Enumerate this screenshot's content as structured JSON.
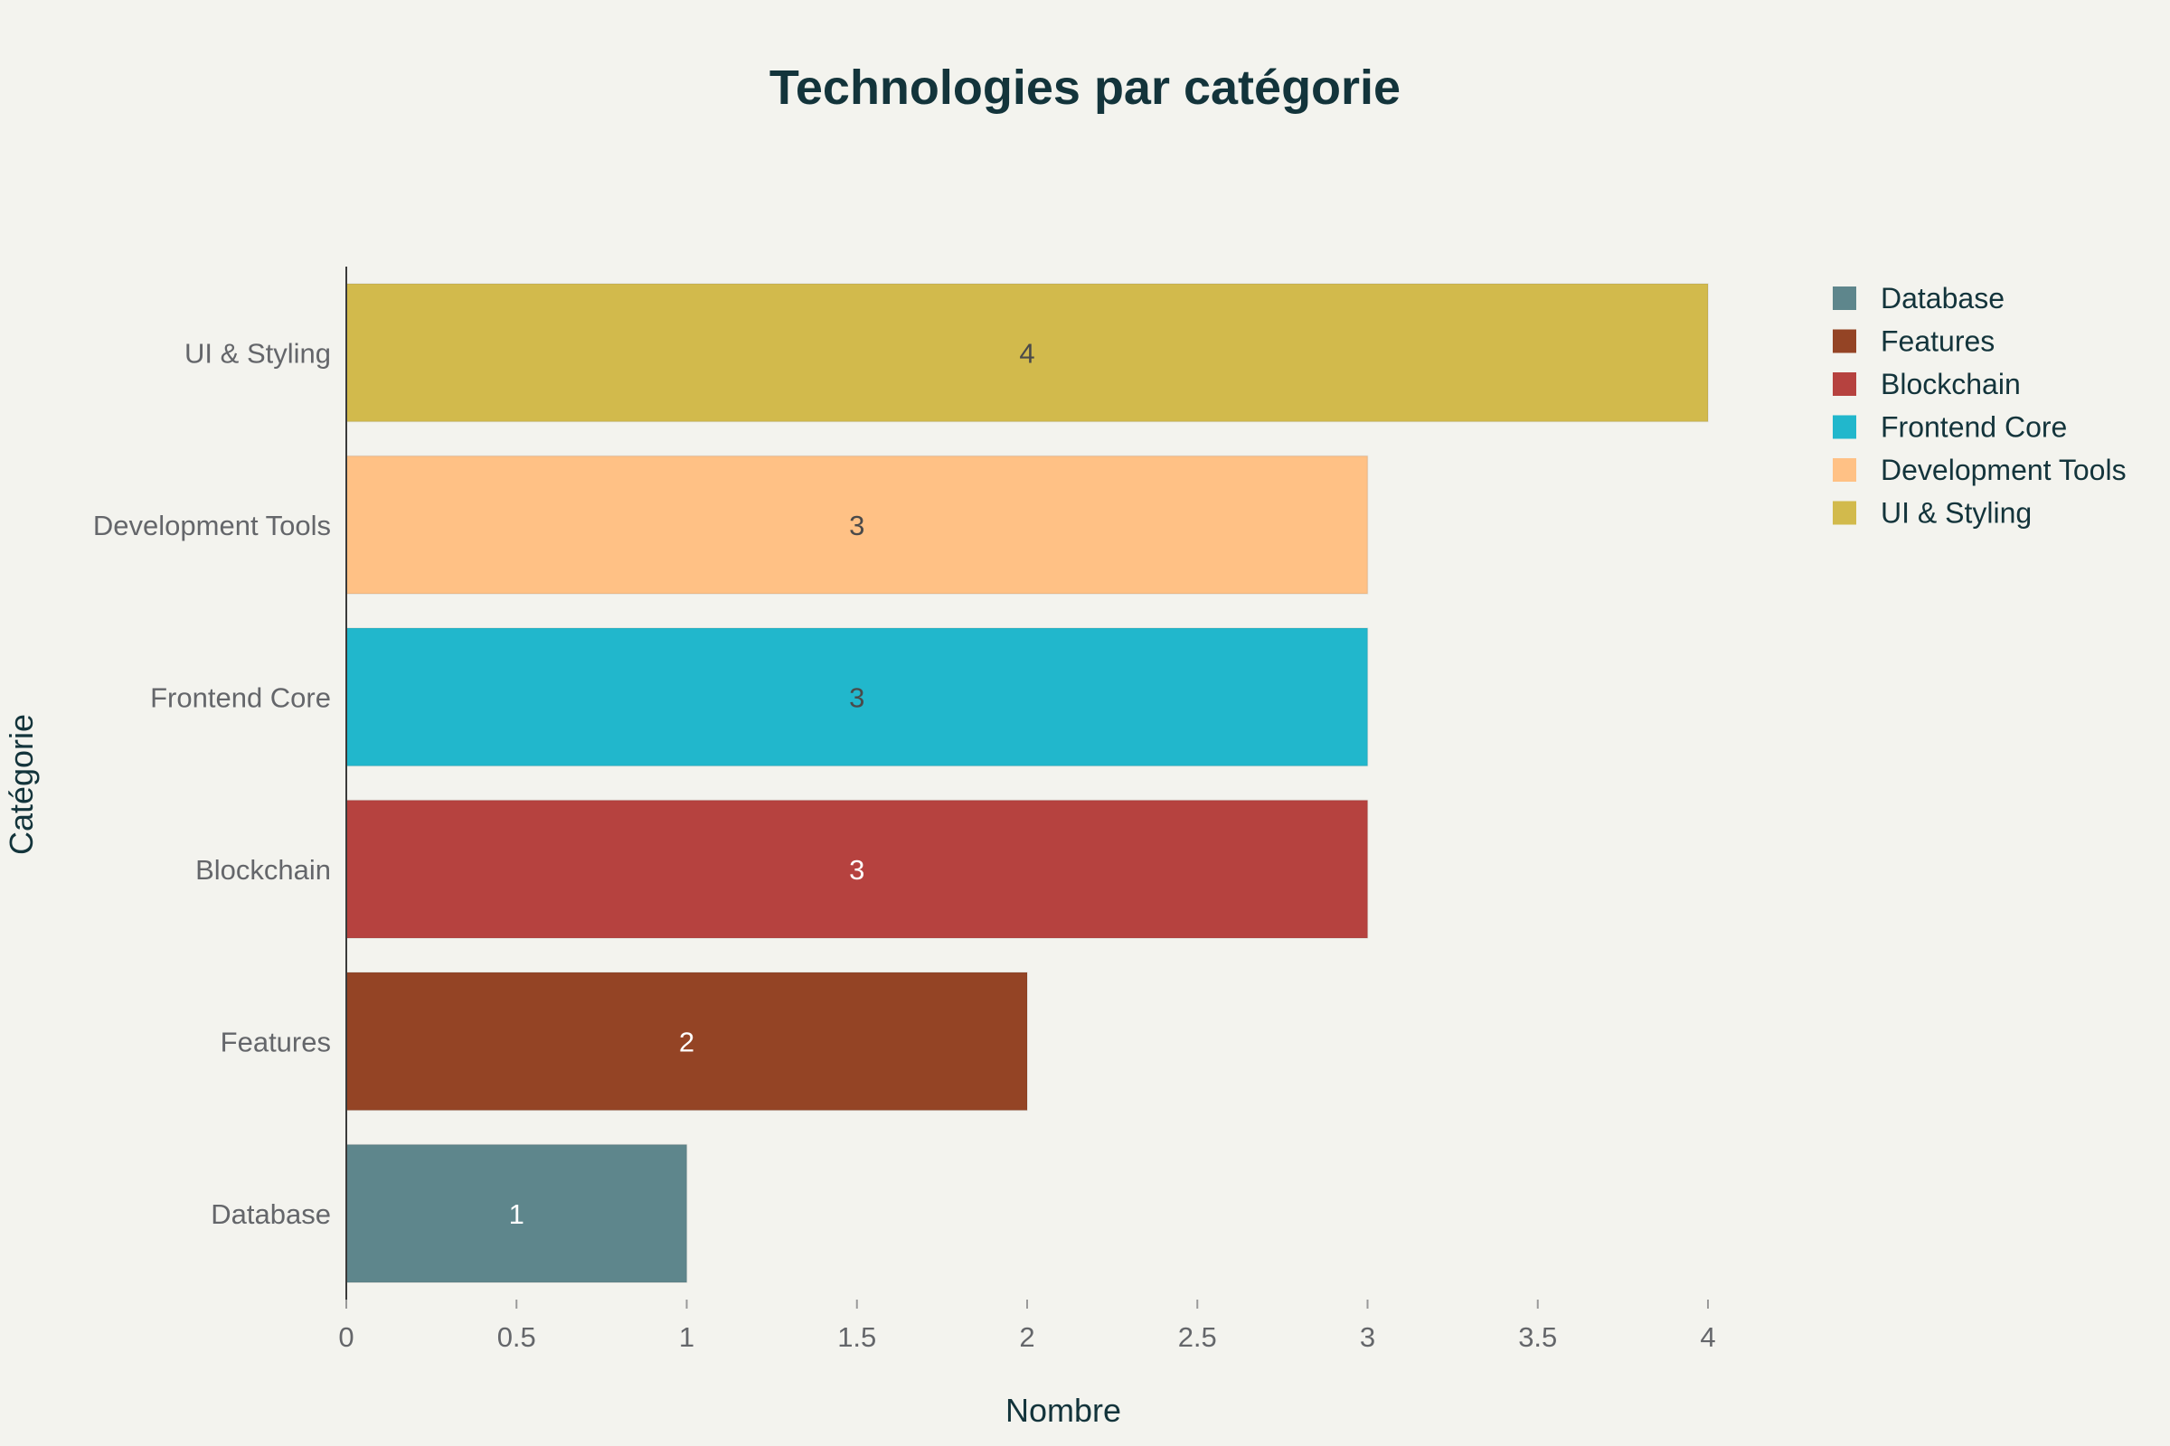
{
  "chart_data": {
    "type": "bar",
    "orientation": "horizontal",
    "title": "Technologies par catégorie",
    "xlabel": "Nombre",
    "ylabel": "Catégorie",
    "xlim": [
      0,
      4
    ],
    "xticks": [
      "0",
      "0.5",
      "1",
      "1.5",
      "2",
      "2.5",
      "3",
      "3.5",
      "4"
    ],
    "grid": false,
    "legend_position": "top-right",
    "categories": [
      "Database",
      "Features",
      "Blockchain",
      "Frontend Core",
      "Development Tools",
      "UI & Styling"
    ],
    "values": [
      1,
      2,
      3,
      3,
      3,
      4
    ],
    "colors": [
      "#5e868c",
      "#944425",
      "#b6423f",
      "#21b7cc",
      "#ffc185",
      "#d2ba4c"
    ],
    "label_colors": [
      "#ffffff",
      "#ffffff",
      "#ffffff",
      "#4a4a4a",
      "#4a4a4a",
      "#4a4a4a"
    ],
    "legend": [
      "Database",
      "Features",
      "Blockchain",
      "Frontend Core",
      "Development Tools",
      "UI & Styling"
    ]
  }
}
